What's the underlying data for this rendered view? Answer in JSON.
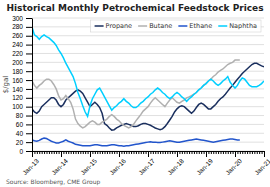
{
  "chart_data": {
    "type": "line",
    "title": "Historical Monthly Petrochemical Feedstock Prices",
    "ylabel": "$/gal",
    "annotations": [
      "Source: Bloomberg, CME Group"
    ],
    "categories": [
      "Jan-13",
      null,
      null,
      null,
      null,
      null,
      null,
      null,
      null,
      null,
      null,
      null,
      "Jan-14",
      null,
      null,
      null,
      null,
      null,
      null,
      null,
      null,
      null,
      null,
      null,
      "Jan-15",
      null,
      null,
      null,
      null,
      null,
      null,
      null,
      null,
      null,
      null,
      null,
      "Jan-16",
      null,
      null,
      null,
      null,
      null,
      null,
      null,
      null,
      null,
      null,
      null,
      "Jan-17",
      null,
      null,
      null,
      null,
      null,
      null,
      null,
      null,
      null,
      null,
      null,
      "Jan-18",
      null,
      null,
      null,
      null,
      null,
      null,
      null,
      null,
      null,
      null,
      null,
      "Jan-19",
      null,
      null,
      null,
      null,
      null,
      null,
      null,
      null,
      null,
      null,
      null,
      "Jan-20",
      null,
      null,
      null,
      null,
      null,
      null,
      null,
      null,
      null,
      null,
      null,
      "Jan-21"
    ],
    "series": [
      {
        "name": "Propane",
        "color": "#1a2f5e",
        "values": [
          95,
          88,
          85,
          90,
          100,
          105,
          110,
          115,
          120,
          120,
          115,
          105,
          100,
          105,
          115,
          120,
          125,
          130,
          135,
          138,
          135,
          130,
          120,
          110,
          100,
          105,
          110,
          105,
          98,
          85,
          62,
          58,
          52,
          47,
          48,
          52,
          55,
          58,
          60,
          62,
          60,
          58,
          55,
          55,
          57,
          60,
          62,
          62,
          60,
          58,
          55,
          52,
          50,
          48,
          50,
          55,
          62,
          70,
          78,
          88,
          95,
          100,
          102,
          100,
          95,
          90,
          85,
          90,
          98,
          105,
          108,
          105,
          100,
          95,
          95,
          100,
          105,
          112,
          118,
          122,
          128,
          135,
          142,
          148,
          155,
          162,
          168,
          175,
          180,
          185,
          190,
          195,
          198,
          198,
          195,
          192,
          190
        ]
      },
      {
        "name": "Butane",
        "color": "#b0b0b0",
        "values": [
          158,
          148,
          142,
          148,
          152,
          158,
          162,
          162,
          158,
          150,
          140,
          125,
          115,
          118,
          125,
          118,
          110,
          95,
          72,
          62,
          56,
          52,
          55,
          60,
          65,
          68,
          65,
          60,
          60,
          65,
          68,
          72,
          78,
          82,
          78,
          72,
          68,
          62,
          58,
          55,
          52,
          55,
          60,
          68,
          75,
          82,
          90,
          95,
          100,
          108,
          115,
          120,
          115,
          110,
          105,
          100,
          108,
          115,
          120,
          115,
          110,
          108,
          112,
          115,
          120,
          122,
          125,
          128,
          132,
          138,
          142,
          148,
          152,
          158,
          162,
          168,
          172,
          178,
          182,
          185,
          190,
          195,
          198,
          200,
          205,
          205,
          205,
          null,
          null,
          null,
          null,
          null,
          null,
          null,
          null,
          null,
          null
        ]
      },
      {
        "name": "Ethane",
        "color": "#2255cc",
        "values": [
          25,
          23,
          22,
          24,
          27,
          29,
          28,
          25,
          22,
          20,
          18,
          18,
          20,
          22,
          25,
          22,
          20,
          18,
          15,
          14,
          13,
          12,
          12,
          12,
          12,
          13,
          14,
          14,
          13,
          12,
          12,
          12,
          13,
          14,
          14,
          13,
          12,
          12,
          11,
          12,
          12,
          13,
          14,
          15,
          16,
          17,
          18,
          19,
          20,
          21,
          20,
          20,
          19,
          19,
          20,
          21,
          22,
          23,
          22,
          21,
          20,
          20,
          21,
          22,
          23,
          24,
          25,
          26,
          27,
          26,
          25,
          24,
          23,
          22,
          21,
          20,
          21,
          22,
          23,
          24,
          25,
          26,
          27,
          27,
          26,
          25,
          25,
          null,
          null,
          null,
          null,
          null,
          null,
          null,
          null,
          null,
          null
        ]
      },
      {
        "name": "Naphtha",
        "color": "#00cfff",
        "values": [
          280,
          262,
          258,
          252,
          258,
          262,
          258,
          255,
          250,
          245,
          238,
          228,
          220,
          210,
          198,
          188,
          178,
          168,
          152,
          132,
          118,
          102,
          88,
          78,
          102,
          118,
          128,
          138,
          142,
          132,
          122,
          112,
          102,
          92,
          98,
          102,
          108,
          112,
          118,
          112,
          108,
          102,
          98,
          98,
          102,
          108,
          112,
          118,
          122,
          128,
          132,
          138,
          142,
          138,
          132,
          128,
          122,
          118,
          122,
          128,
          132,
          128,
          122,
          118,
          112,
          118,
          122,
          128,
          132,
          138,
          142,
          148,
          152,
          158,
          162,
          158,
          152,
          148,
          152,
          158,
          162,
          168,
          155,
          148,
          142,
          148,
          158,
          165,
          162,
          155,
          148,
          145,
          145,
          145,
          148,
          152,
          158
        ]
      }
    ],
    "ylim": [
      0,
      300
    ],
    "yticks": [
      0,
      20,
      40,
      60,
      80,
      100,
      120,
      140,
      160,
      180,
      200,
      220,
      240,
      260,
      280,
      300
    ],
    "grid": true,
    "legend": "upper right"
  }
}
